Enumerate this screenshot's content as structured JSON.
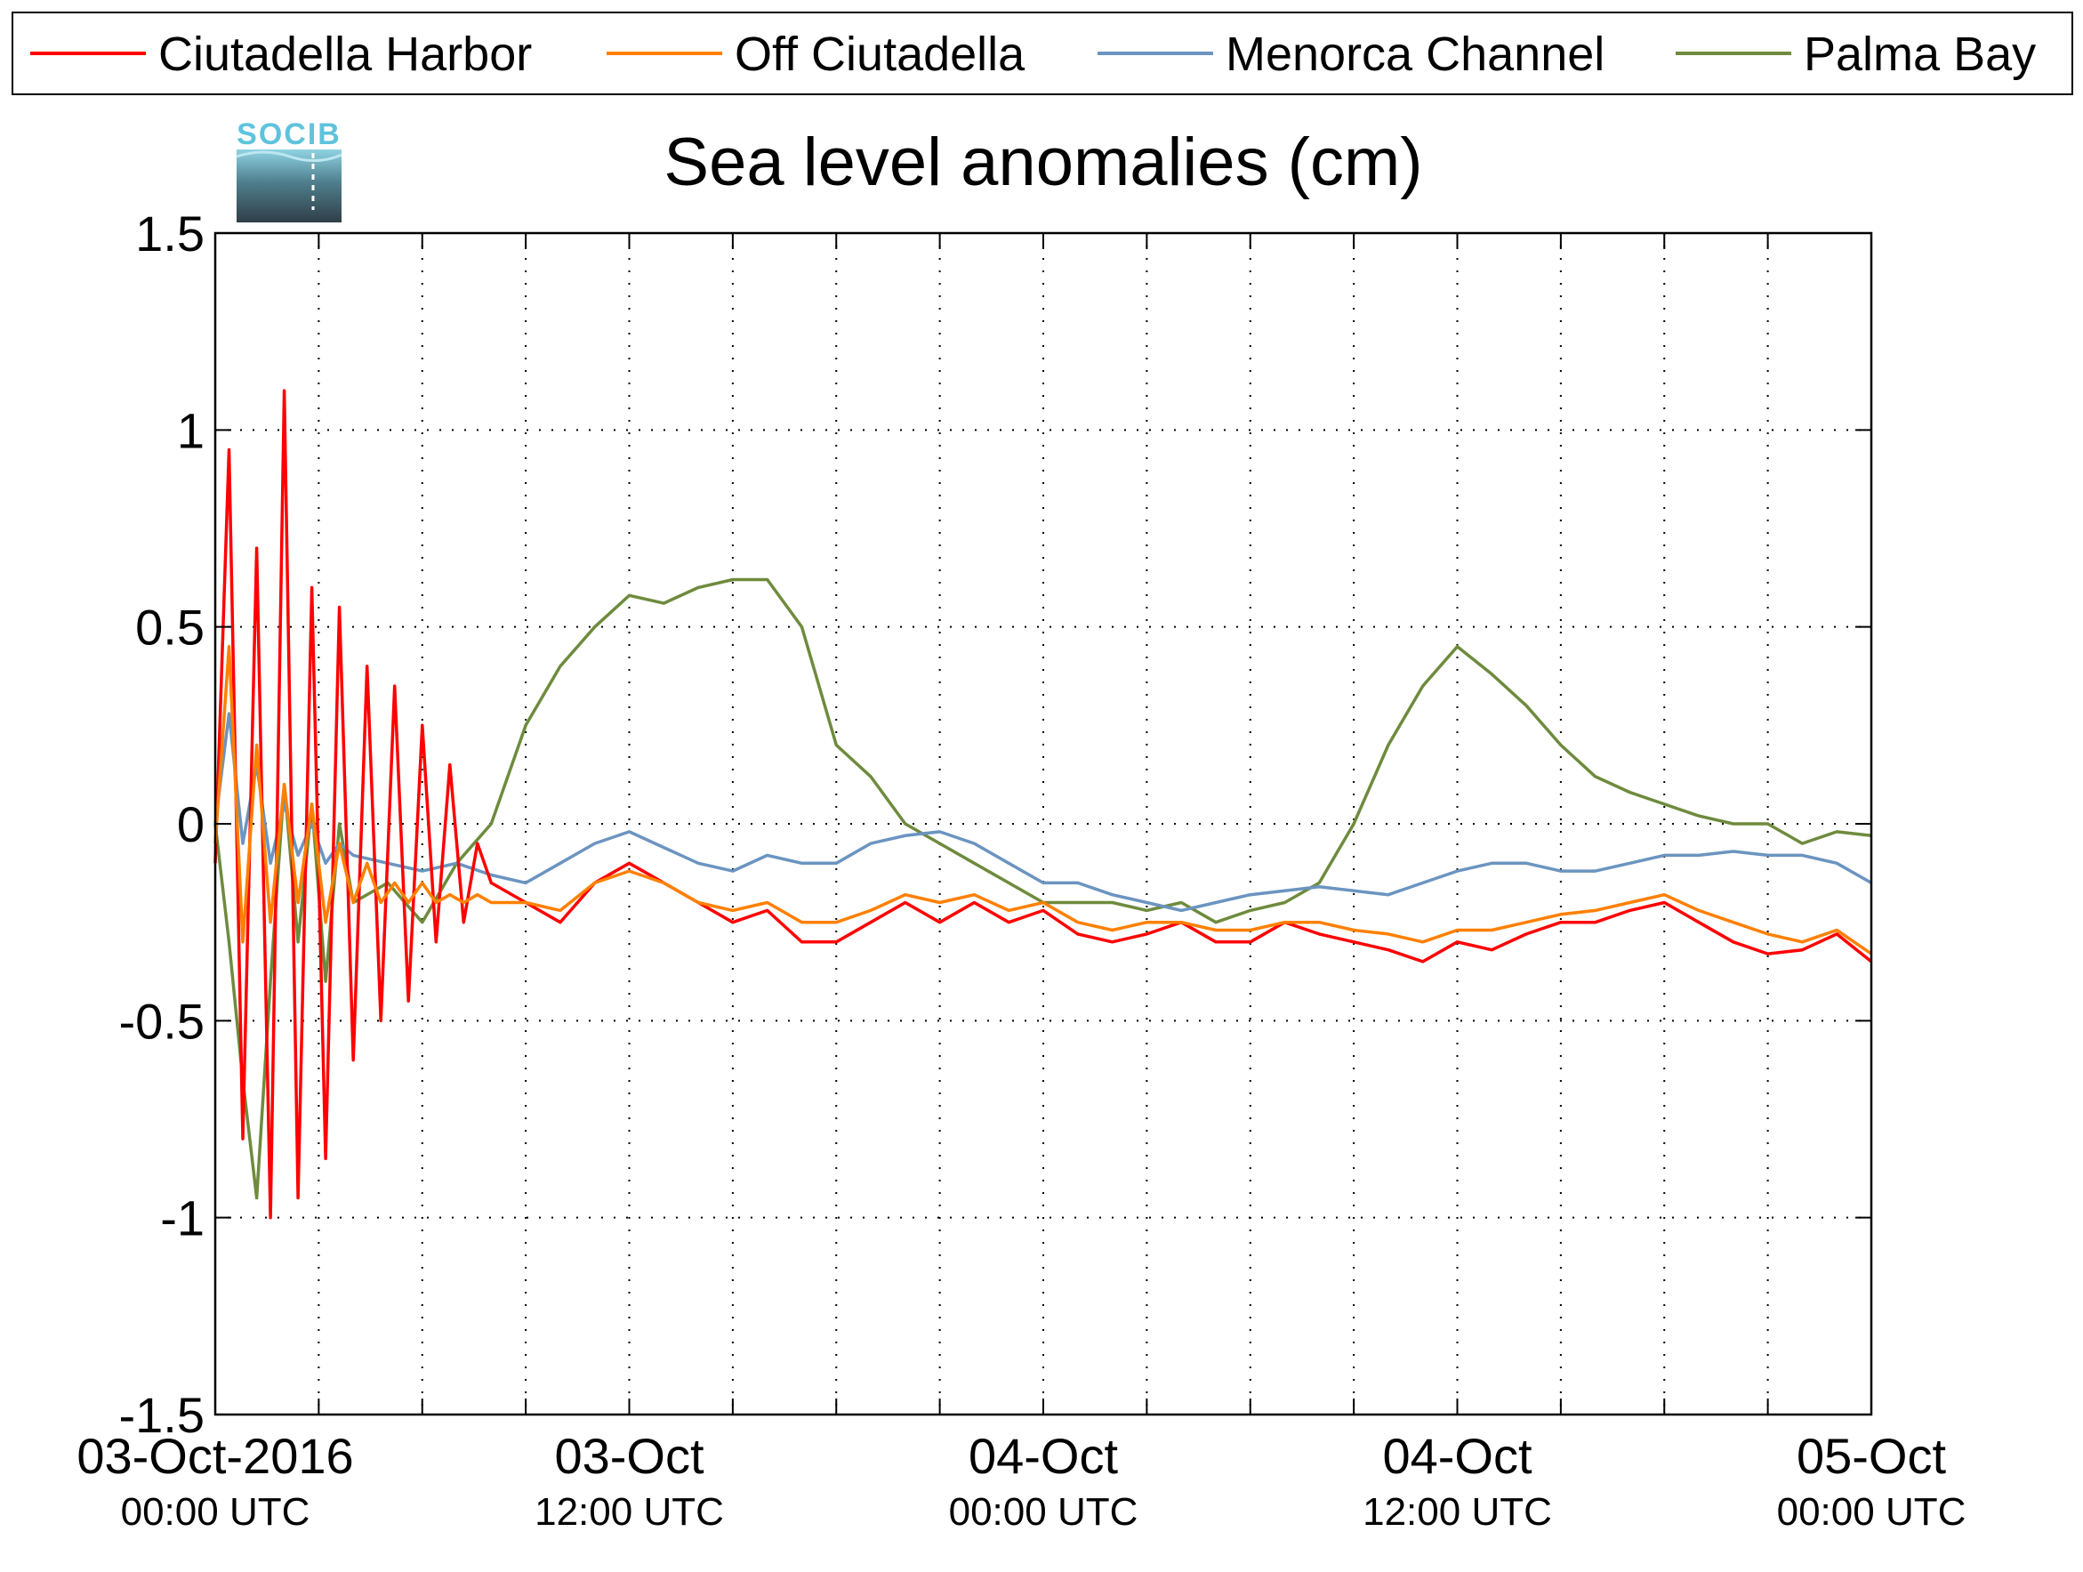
{
  "chart_data": {
    "type": "line",
    "title": "Sea level anomalies (cm)",
    "xlabel": "",
    "ylabel": "",
    "x_range_hours": [
      0,
      48
    ],
    "ylim": [
      -1.5,
      1.5
    ],
    "yticks": [
      -1.5,
      -1,
      -0.5,
      0,
      0.5,
      1,
      1.5
    ],
    "ytick_labels": [
      "-1.5",
      "-1",
      "-0.5",
      "0",
      "0.5",
      "1",
      "1.5"
    ],
    "xticks": [
      {
        "hour": 0,
        "date": "03-Oct-2016",
        "time": "00:00 UTC"
      },
      {
        "hour": 12,
        "date": "03-Oct",
        "time": "12:00 UTC"
      },
      {
        "hour": 24,
        "date": "04-Oct",
        "time": "00:00 UTC"
      },
      {
        "hour": 36,
        "date": "04-Oct",
        "time": "12:00 UTC"
      },
      {
        "hour": 48,
        "date": "05-Oct",
        "time": "00:00 UTC"
      }
    ],
    "grid": true,
    "legend_position": "top",
    "logo_text": "SOCIB",
    "series": [
      {
        "name": "Ciutadella Harbor",
        "color": "#ff0000",
        "x": [
          0,
          0.4,
          0.8,
          1.2,
          1.6,
          2.0,
          2.4,
          2.8,
          3.2,
          3.6,
          4.0,
          4.4,
          4.8,
          5.2,
          5.6,
          6.0,
          6.4,
          6.8,
          7.2,
          7.6,
          8,
          9,
          10,
          11,
          12,
          13,
          14,
          15,
          16,
          17,
          18,
          19,
          20,
          21,
          22,
          23,
          24,
          25,
          26,
          27,
          28,
          29,
          30,
          31,
          32,
          33,
          34,
          35,
          36,
          37,
          38,
          39,
          40,
          41,
          42,
          43,
          44,
          45,
          46,
          47,
          48
        ],
        "y": [
          -0.1,
          0.95,
          -0.8,
          0.7,
          -1.0,
          1.1,
          -0.95,
          0.6,
          -0.85,
          0.55,
          -0.6,
          0.4,
          -0.5,
          0.35,
          -0.45,
          0.25,
          -0.3,
          0.15,
          -0.25,
          -0.05,
          -0.15,
          -0.2,
          -0.25,
          -0.15,
          -0.1,
          -0.15,
          -0.2,
          -0.25,
          -0.22,
          -0.3,
          -0.3,
          -0.25,
          -0.2,
          -0.25,
          -0.2,
          -0.25,
          -0.22,
          -0.28,
          -0.3,
          -0.28,
          -0.25,
          -0.3,
          -0.3,
          -0.25,
          -0.28,
          -0.3,
          -0.32,
          -0.35,
          -0.3,
          -0.32,
          -0.28,
          -0.25,
          -0.25,
          -0.22,
          -0.2,
          -0.25,
          -0.3,
          -0.33,
          -0.32,
          -0.28,
          -0.35
        ]
      },
      {
        "name": "Off Ciutadella",
        "color": "#ff8000",
        "x": [
          0,
          0.4,
          0.8,
          1.2,
          1.6,
          2.0,
          2.4,
          2.8,
          3.2,
          3.6,
          4.0,
          4.4,
          4.8,
          5.2,
          5.6,
          6.0,
          6.4,
          6.8,
          7.2,
          7.6,
          8,
          9,
          10,
          11,
          12,
          13,
          14,
          15,
          16,
          17,
          18,
          19,
          20,
          21,
          22,
          23,
          24,
          25,
          26,
          27,
          28,
          29,
          30,
          31,
          32,
          33,
          34,
          35,
          36,
          37,
          38,
          39,
          40,
          41,
          42,
          43,
          44,
          45,
          46,
          47,
          48
        ],
        "y": [
          -0.05,
          0.45,
          -0.3,
          0.2,
          -0.25,
          0.1,
          -0.2,
          0.05,
          -0.25,
          -0.05,
          -0.2,
          -0.1,
          -0.2,
          -0.15,
          -0.2,
          -0.15,
          -0.2,
          -0.18,
          -0.2,
          -0.18,
          -0.2,
          -0.2,
          -0.22,
          -0.15,
          -0.12,
          -0.15,
          -0.2,
          -0.22,
          -0.2,
          -0.25,
          -0.25,
          -0.22,
          -0.18,
          -0.2,
          -0.18,
          -0.22,
          -0.2,
          -0.25,
          -0.27,
          -0.25,
          -0.25,
          -0.27,
          -0.27,
          -0.25,
          -0.25,
          -0.27,
          -0.28,
          -0.3,
          -0.27,
          -0.27,
          -0.25,
          -0.23,
          -0.22,
          -0.2,
          -0.18,
          -0.22,
          -0.25,
          -0.28,
          -0.3,
          -0.27,
          -0.33
        ]
      },
      {
        "name": "Menorca Channel",
        "color": "#6b94c0",
        "x": [
          0,
          0.4,
          0.8,
          1.2,
          1.6,
          2.0,
          2.4,
          2.8,
          3.2,
          3.6,
          4,
          5,
          6,
          7,
          8,
          9,
          10,
          11,
          12,
          13,
          14,
          15,
          16,
          17,
          18,
          19,
          20,
          21,
          22,
          23,
          24,
          25,
          26,
          27,
          28,
          29,
          30,
          31,
          32,
          33,
          34,
          35,
          36,
          37,
          38,
          39,
          40,
          41,
          42,
          43,
          44,
          45,
          46,
          47,
          48
        ],
        "y": [
          0.0,
          0.28,
          -0.05,
          0.15,
          -0.1,
          0.05,
          -0.08,
          0.0,
          -0.1,
          -0.05,
          -0.08,
          -0.1,
          -0.12,
          -0.1,
          -0.13,
          -0.15,
          -0.1,
          -0.05,
          -0.02,
          -0.06,
          -0.1,
          -0.12,
          -0.08,
          -0.1,
          -0.1,
          -0.05,
          -0.03,
          -0.02,
          -0.05,
          -0.1,
          -0.15,
          -0.15,
          -0.18,
          -0.2,
          -0.22,
          -0.2,
          -0.18,
          -0.17,
          -0.16,
          -0.17,
          -0.18,
          -0.15,
          -0.12,
          -0.1,
          -0.1,
          -0.12,
          -0.12,
          -0.1,
          -0.08,
          -0.08,
          -0.07,
          -0.08,
          -0.08,
          -0.1,
          -0.15
        ]
      },
      {
        "name": "Palma Bay",
        "color": "#6e8b3d",
        "x": [
          0,
          0.4,
          0.8,
          1.2,
          1.6,
          2.0,
          2.4,
          2.8,
          3.2,
          3.6,
          4,
          5,
          6,
          7,
          8,
          9,
          10,
          11,
          12,
          13,
          14,
          15,
          16,
          17,
          18,
          19,
          20,
          21,
          22,
          23,
          24,
          25,
          26,
          27,
          28,
          29,
          30,
          31,
          32,
          33,
          34,
          35,
          36,
          37,
          38,
          39,
          40,
          41,
          42,
          43,
          44,
          45,
          46,
          47,
          48
        ],
        "y": [
          0.0,
          -0.3,
          -0.65,
          -0.95,
          -0.4,
          0.1,
          -0.3,
          0.05,
          -0.4,
          0.0,
          -0.2,
          -0.15,
          -0.25,
          -0.1,
          0.0,
          0.25,
          0.4,
          0.5,
          0.58,
          0.56,
          0.6,
          0.62,
          0.62,
          0.5,
          0.2,
          0.12,
          0.0,
          -0.05,
          -0.1,
          -0.15,
          -0.2,
          -0.2,
          -0.2,
          -0.22,
          -0.2,
          -0.25,
          -0.22,
          -0.2,
          -0.15,
          0.0,
          0.2,
          0.35,
          0.45,
          0.38,
          0.3,
          0.2,
          0.12,
          0.08,
          0.05,
          0.02,
          0.0,
          0.0,
          -0.05,
          -0.02,
          -0.03
        ]
      }
    ]
  }
}
